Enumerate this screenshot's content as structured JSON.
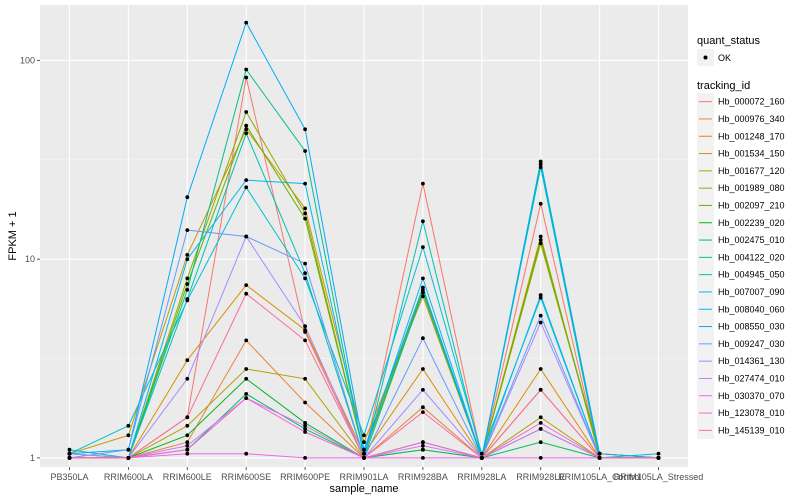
{
  "chart_data": {
    "type": "line",
    "xlabel": "sample_name",
    "ylabel": "FPKM + 1",
    "y_scale": "log10",
    "ylim": [
      0.9,
      190
    ],
    "y_ticks": [
      1,
      10,
      100
    ],
    "y_tick_labels": [
      "1",
      "10",
      "100"
    ],
    "categories": [
      "PB350LA",
      "RRIM600LA",
      "RRIM600LE",
      "RRIM600SE",
      "RRIM600PE",
      "RRIM901LA",
      "RRIM928BA",
      "RRIM928LA",
      "RRIM928LE",
      "RRIM105LA_Control",
      "RRIM105LA_Stressed"
    ],
    "grid": true,
    "background": "#ebebeb",
    "legend_position": "right",
    "legend_shape": {
      "title": "quant_status",
      "items": [
        "OK"
      ]
    },
    "legend_color": {
      "title": "tracking_id"
    },
    "point_color": "#000000",
    "series": [
      {
        "name": "Hb_000072_160",
        "color": "#F8766D",
        "values": [
          1.0,
          1.0,
          1.6,
          82,
          4.3,
          1.0,
          24,
          1.0,
          19,
          1.0,
          1.0
        ]
      },
      {
        "name": "Hb_000976_340",
        "color": "#EC8239",
        "values": [
          1.0,
          1.0,
          1.2,
          3.9,
          1.9,
          1.0,
          1.8,
          1.0,
          2.2,
          1.0,
          1.0
        ]
      },
      {
        "name": "Hb_001248_170",
        "color": "#DB8E00",
        "values": [
          1.05,
          1.0,
          3.1,
          7.4,
          4.4,
          1.05,
          2.8,
          1.0,
          2.8,
          1.0,
          1.0
        ]
      },
      {
        "name": "Hb_001534_150",
        "color": "#C79800",
        "values": [
          1.05,
          1.3,
          10.5,
          45,
          18,
          1.2,
          6.5,
          1.0,
          13,
          1.0,
          1.0
        ]
      },
      {
        "name": "Hb_001677_120",
        "color": "#AEA200",
        "values": [
          1.0,
          1.0,
          1.45,
          2.8,
          2.5,
          1.0,
          1.1,
          1.0,
          1.6,
          1.0,
          1.0
        ]
      },
      {
        "name": "Hb_001989_080",
        "color": "#8FAA00",
        "values": [
          1.0,
          1.0,
          8.0,
          55,
          17,
          1.05,
          6.8,
          1.0,
          12,
          1.05,
          1.0
        ]
      },
      {
        "name": "Hb_002097_210",
        "color": "#64B200",
        "values": [
          1.0,
          1.0,
          7.5,
          47,
          16,
          1.05,
          7.0,
          1.0,
          12.5,
          1.05,
          1.0
        ]
      },
      {
        "name": "Hb_002239_020",
        "color": "#00B81B",
        "values": [
          1.0,
          1.0,
          1.3,
          2.5,
          1.5,
          1.0,
          1.2,
          1.0,
          1.4,
          1.0,
          1.0
        ]
      },
      {
        "name": "Hb_002475_010",
        "color": "#00BD5C",
        "values": [
          1.0,
          1.0,
          1.1,
          2.1,
          1.4,
          1.0,
          1.1,
          1.0,
          1.2,
          1.0,
          1.0
        ]
      },
      {
        "name": "Hb_004122_020",
        "color": "#00C08B",
        "values": [
          1.0,
          1.0,
          7.0,
          90,
          35,
          1.0,
          6.8,
          1.0,
          30,
          1.0,
          1.0
        ]
      },
      {
        "name": "Hb_004945_050",
        "color": "#00C1B2",
        "values": [
          1.1,
          1.0,
          6.3,
          43,
          8.5,
          1.0,
          15.5,
          1.0,
          29,
          1.0,
          1.0
        ]
      },
      {
        "name": "Hb_007007_090",
        "color": "#00BFD4",
        "values": [
          1.05,
          1.45,
          6.2,
          23,
          8.0,
          1.3,
          11.5,
          1.05,
          6.4,
          1.0,
          1.05
        ]
      },
      {
        "name": "Hb_008040_060",
        "color": "#00B8EE",
        "values": [
          1.05,
          1.0,
          10.0,
          25,
          24,
          1.05,
          8.0,
          1.0,
          6.6,
          1.0,
          1.0
        ]
      },
      {
        "name": "Hb_008550_030",
        "color": "#00ABFD",
        "values": [
          1.05,
          1.1,
          20.5,
          155,
          45,
          1.1,
          7.2,
          1.0,
          31,
          1.05,
          1.0
        ]
      },
      {
        "name": "Hb_009247_030",
        "color": "#619CFF",
        "values": [
          1.0,
          1.1,
          14,
          13,
          9.5,
          1.0,
          4.0,
          1.0,
          5.2,
          1.0,
          1.0
        ]
      },
      {
        "name": "Hb_014361_130",
        "color": "#A58AFF",
        "values": [
          1.05,
          1.0,
          2.5,
          13,
          4.6,
          1.0,
          2.2,
          1.0,
          4.8,
          1.0,
          1.0
        ]
      },
      {
        "name": "Hb_027474_010",
        "color": "#D078FF",
        "values": [
          1.0,
          1.0,
          1.15,
          2.0,
          1.45,
          1.0,
          1.15,
          1.0,
          1.4,
          1.0,
          1.0
        ]
      },
      {
        "name": "Hb_030370_070",
        "color": "#EE67EC",
        "values": [
          1.0,
          1.0,
          1.05,
          1.05,
          1.0,
          1.0,
          1.0,
          1.0,
          1.0,
          1.0,
          1.0
        ]
      },
      {
        "name": "Hb_123078_010",
        "color": "#FC61D1",
        "values": [
          1.0,
          1.0,
          1.1,
          2.0,
          1.35,
          1.0,
          1.2,
          1.0,
          1.5,
          1.0,
          1.0
        ]
      },
      {
        "name": "Hb_145139_010",
        "color": "#FF6A98",
        "values": [
          1.0,
          1.0,
          1.6,
          6.7,
          3.9,
          1.0,
          1.7,
          1.0,
          2.2,
          1.0,
          1.0
        ]
      }
    ]
  }
}
